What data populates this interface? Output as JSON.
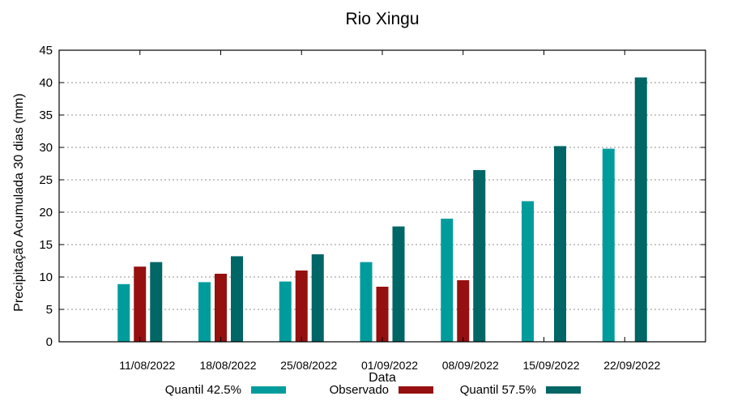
{
  "chart_data": {
    "type": "bar",
    "title": "Rio Xingu",
    "xlabel": "Data",
    "ylabel": "Precipitação Acumulada 30 dias (mm)",
    "ylim": [
      0,
      45
    ],
    "ytick_step": 5,
    "grid": "horizontal dotted gridlines every 5 mm",
    "legend_position": "bottom",
    "categories": [
      "11/08/2022",
      "18/08/2022",
      "25/08/2022",
      "01/09/2022",
      "08/09/2022",
      "15/09/2022",
      "22/09/2022"
    ],
    "series": [
      {
        "name": "Quantil 42.5%",
        "color": "#009C9C",
        "values": [
          8.9,
          9.2,
          9.3,
          12.3,
          19.0,
          21.7,
          29.8
        ]
      },
      {
        "name": "Observado",
        "color": "#961010",
        "values": [
          11.6,
          10.5,
          11.0,
          8.5,
          9.5,
          null,
          null
        ]
      },
      {
        "name": "Quantil 57.5%",
        "color": "#006666",
        "values": [
          12.3,
          13.2,
          13.5,
          17.8,
          26.5,
          30.2,
          40.8
        ]
      }
    ],
    "colors": {
      "grid": "#909090",
      "axis": "#000000",
      "background": "#ffffff"
    }
  }
}
